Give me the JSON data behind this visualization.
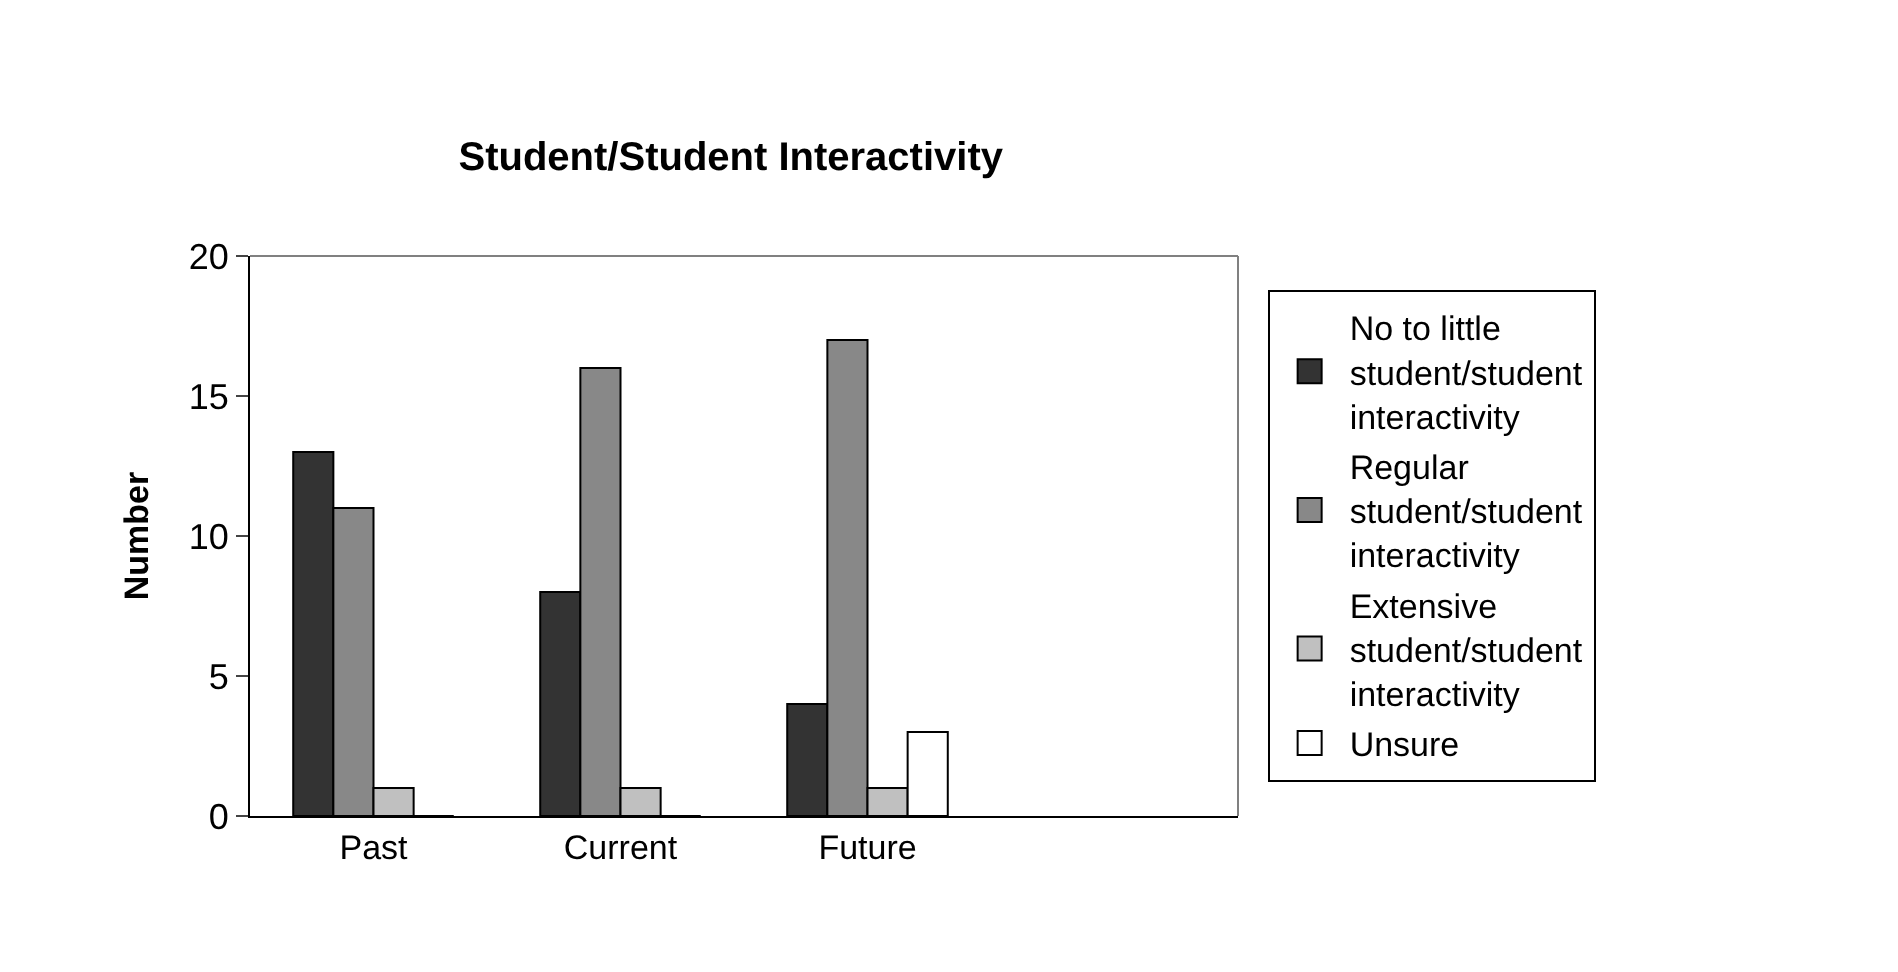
{
  "chart_data": {
    "type": "bar",
    "title": "Student/Student Interactivity",
    "ylabel": "Number",
    "categories": [
      "Past",
      "Current",
      "Future",
      null
    ],
    "series": [
      {
        "name": "No to little student/student interactivity",
        "color": "#333333",
        "values": [
          13,
          8,
          4,
          null
        ]
      },
      {
        "name": "Regular student/student interactivity",
        "color": "#888888",
        "values": [
          11,
          16,
          17,
          null
        ]
      },
      {
        "name": "Extensive student/student interactivity",
        "color": "#c0c0c0",
        "values": [
          1,
          1,
          1,
          null
        ]
      },
      {
        "name": "Unsure",
        "color": "#ffffff",
        "values": [
          0,
          0,
          3,
          null
        ]
      }
    ],
    "ylim": [
      0,
      20
    ],
    "yticks": [
      0,
      5,
      10,
      15,
      20
    ],
    "grid": false,
    "legend": "right"
  }
}
